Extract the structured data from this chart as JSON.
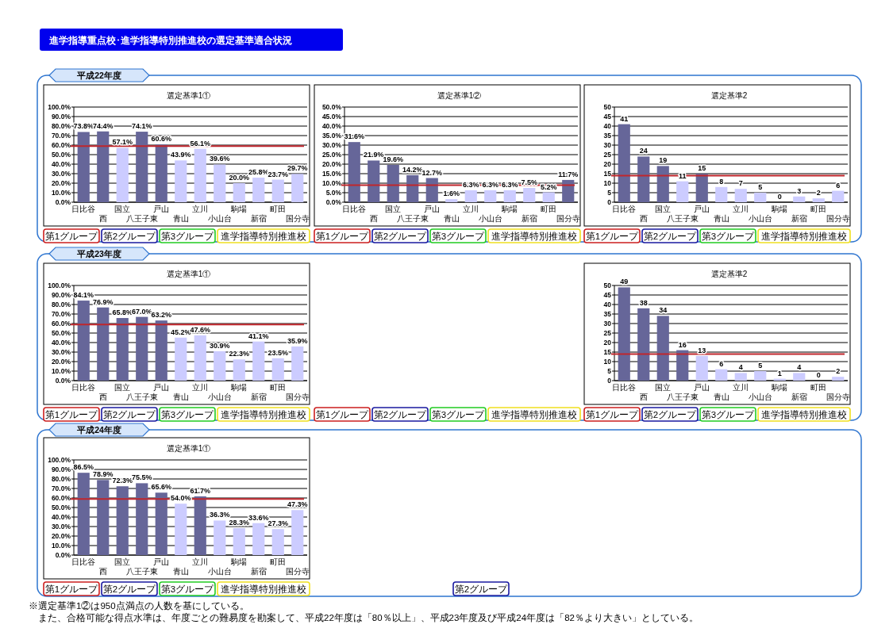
{
  "chart_data": [
    {
      "type": "other",
      "title": "進学指導重点校･進学指導特別推進校の選定基準適合状況",
      "annotations": [
        "※選定基準1②は950点満点の人数を基にしている。",
        "　また、合格可能な得点水準は、年度ごとの難易度を勘案して、平成22年度は「80％以上」、平成23年度及び平成24年度は「82％より大きい」としている。"
      ]
    },
    {
      "type": "bar",
      "subtitle": "平成22年度",
      "title": "選定基準1①",
      "categories": [
        "日比谷",
        "西",
        "国立",
        "八王子東",
        "戸山",
        "青山",
        "立川",
        "小山台",
        "駒場",
        "新宿",
        "町田",
        "国分寺"
      ],
      "values": [
        73.8,
        74.4,
        57.1,
        74.1,
        60.6,
        43.9,
        56.1,
        39.6,
        20.0,
        25.8,
        23.7,
        29.7
      ],
      "value_labels": [
        "73.8%",
        "74.4%",
        "57.1%",
        "74.1%",
        "60.6%",
        "43.9%",
        "56.1%",
        "39.6%",
        "20.0%",
        "25.8%",
        "23.7%",
        "29.7%"
      ],
      "colors": [
        "#666699",
        "#666699",
        "#ccccff",
        "#666699",
        "#666699",
        "#ccccff",
        "#ccccff",
        "#ccccff",
        "#ccccff",
        "#ccccff",
        "#ccccff",
        "#ccccff"
      ],
      "ylim": [
        0,
        100
      ],
      "yticks": [
        {
          "value": 0,
          "label": "0.0%"
        },
        {
          "value": 10,
          "label": "10.0%"
        },
        {
          "value": 20,
          "label": "20.0%"
        },
        {
          "value": 30,
          "label": "30.0%"
        },
        {
          "value": 40,
          "label": "40.0%"
        },
        {
          "value": 50,
          "label": "50.0%"
        },
        {
          "value": 60,
          "label": "60.0%"
        },
        {
          "value": 70,
          "label": "70.0%"
        },
        {
          "value": 80,
          "label": "80.0%"
        },
        {
          "value": 90,
          "label": "90.0%"
        },
        {
          "value": 100,
          "label": "100.0%"
        }
      ],
      "ref_lines": [
        {
          "axis": "y",
          "value": 59,
          "color": "#c0262c"
        }
      ],
      "grid": "y",
      "annotations": [
        "第1グループ",
        "第2グループ",
        "第3グループ",
        "進学指導特別推進校"
      ]
    },
    {
      "type": "bar",
      "title": "選定基準1②",
      "categories": [
        "日比谷",
        "西",
        "国立",
        "八王子東",
        "戸山",
        "青山",
        "立川",
        "小山台",
        "駒場",
        "新宿",
        "町田",
        "国分寺"
      ],
      "values": [
        31.6,
        21.9,
        19.6,
        14.2,
        12.7,
        1.6,
        6.3,
        6.3,
        6.3,
        7.5,
        5.2,
        11.7
      ],
      "value_labels": [
        "31.6%",
        "21.9%",
        "19.6%",
        "14.2%",
        "12.7%",
        "1.6%",
        "6.3%",
        "6.3%",
        "6.3%",
        "7.5%",
        "5.2%",
        "11.7%"
      ],
      "colors": [
        "#666699",
        "#666699",
        "#666699",
        "#666699",
        "#666699",
        "#ccccff",
        "#ccccff",
        "#ccccff",
        "#ccccff",
        "#ccccff",
        "#ccccff",
        "#666699"
      ],
      "ylim": [
        0,
        50
      ],
      "yticks": [
        {
          "value": 0,
          "label": "0.0%"
        },
        {
          "value": 5,
          "label": "5.0%"
        },
        {
          "value": 10,
          "label": "10.0%"
        },
        {
          "value": 15,
          "label": "15.0%"
        },
        {
          "value": 20,
          "label": "20.0%"
        },
        {
          "value": 25,
          "label": "25.0%"
        },
        {
          "value": 30,
          "label": "30.0%"
        },
        {
          "value": 35,
          "label": "35.0%"
        },
        {
          "value": 40,
          "label": "40.0%"
        },
        {
          "value": 45,
          "label": "45.0%"
        },
        {
          "value": 50,
          "label": "50.0%"
        }
      ],
      "ref_lines": [
        {
          "axis": "y",
          "value": 9,
          "color": "#c0262c"
        }
      ],
      "grid": "y",
      "annotations": [
        "第1グループ",
        "第2グループ",
        "第3グループ",
        "進学指導特別推進校"
      ]
    },
    {
      "type": "bar",
      "title": "選定基準2",
      "categories": [
        "日比谷",
        "西",
        "国立",
        "八王子東",
        "戸山",
        "青山",
        "立川",
        "小山台",
        "駒場",
        "新宿",
        "町田",
        "国分寺"
      ],
      "values": [
        41,
        24,
        19,
        11,
        15,
        8,
        7,
        5,
        0,
        3,
        2,
        6
      ],
      "data_labels": true,
      "colors": [
        "#666699",
        "#666699",
        "#666699",
        "#ccccff",
        "#666699",
        "#ccccff",
        "#ccccff",
        "#ccccff",
        "#ccccff",
        "#ccccff",
        "#ccccff",
        "#ccccff"
      ],
      "ylim": [
        0,
        50
      ],
      "yticks": [
        0,
        5,
        10,
        15,
        20,
        25,
        30,
        35,
        40,
        45,
        50
      ],
      "ref_lines": [
        {
          "axis": "y",
          "value": 14,
          "color": "#c0262c"
        }
      ],
      "grid": "y",
      "annotations": [
        "第1グループ",
        "第2グループ",
        "第3グループ",
        "進学指導特別推進校"
      ]
    },
    {
      "type": "bar",
      "subtitle": "平成23年度",
      "title": "選定基準1①",
      "categories": [
        "日比谷",
        "西",
        "国立",
        "八王子東",
        "戸山",
        "青山",
        "立川",
        "小山台",
        "駒場",
        "新宿",
        "町田",
        "国分寺"
      ],
      "values": [
        84.1,
        76.9,
        65.8,
        67.0,
        63.2,
        45.2,
        47.6,
        30.9,
        22.3,
        41.1,
        23.5,
        35.9
      ],
      "value_labels": [
        "84.1%",
        "76.9%",
        "65.8%",
        "67.0%",
        "63.2%",
        "45.2%",
        "47.6%",
        "30.9%",
        "22.3%",
        "41.1%",
        "23.5%",
        "35.9%"
      ],
      "colors": [
        "#666699",
        "#666699",
        "#666699",
        "#666699",
        "#666699",
        "#ccccff",
        "#ccccff",
        "#ccccff",
        "#ccccff",
        "#ccccff",
        "#ccccff",
        "#ccccff"
      ],
      "ylim": [
        0,
        100
      ],
      "yticks": [
        {
          "value": 0,
          "label": "0.0%"
        },
        {
          "value": 10,
          "label": "10.0%"
        },
        {
          "value": 20,
          "label": "20.0%"
        },
        {
          "value": 30,
          "label": "30.0%"
        },
        {
          "value": 40,
          "label": "40.0%"
        },
        {
          "value": 50,
          "label": "50.0%"
        },
        {
          "value": 60,
          "label": "60.0%"
        },
        {
          "value": 70,
          "label": "70.0%"
        },
        {
          "value": 80,
          "label": "80.0%"
        },
        {
          "value": 90,
          "label": "90.0%"
        },
        {
          "value": 100,
          "label": "100.0%"
        }
      ],
      "ref_lines": [
        {
          "axis": "y",
          "value": 59,
          "color": "#c0262c"
        }
      ],
      "grid": "y",
      "annotations": [
        "第1グループ",
        "第2グループ",
        "第3グループ",
        "進学指導特別推進校",
        "第1グループ",
        "第2グループ",
        "第3グループ",
        "進学指導特別推進校"
      ]
    },
    {
      "type": "bar",
      "title": "選定基準2",
      "categories": [
        "日比谷",
        "西",
        "国立",
        "八王子東",
        "戸山",
        "青山",
        "立川",
        "小山台",
        "駒場",
        "新宿",
        "町田",
        "国分寺"
      ],
      "values": [
        49,
        38,
        34,
        16,
        13,
        6,
        4,
        5,
        1,
        4,
        0,
        2
      ],
      "data_labels": true,
      "colors": [
        "#666699",
        "#666699",
        "#666699",
        "#666699",
        "#ccccff",
        "#ccccff",
        "#ccccff",
        "#ccccff",
        "#ccccff",
        "#ccccff",
        "#ccccff",
        "#ccccff"
      ],
      "ylim": [
        0,
        50
      ],
      "yticks": [
        0,
        5,
        10,
        15,
        20,
        25,
        30,
        35,
        40,
        45,
        50
      ],
      "ref_lines": [
        {
          "axis": "y",
          "value": 14,
          "color": "#c0262c"
        }
      ],
      "grid": "y",
      "annotations": [
        "第1グループ",
        "第2グループ",
        "第3グループ",
        "進学指導特別推進校"
      ]
    },
    {
      "type": "bar",
      "subtitle": "平成24年度",
      "title": "選定基準1①",
      "categories": [
        "日比谷",
        "西",
        "国立",
        "八王子東",
        "戸山",
        "青山",
        "立川",
        "小山台",
        "駒場",
        "新宿",
        "町田",
        "国分寺"
      ],
      "values": [
        86.5,
        78.9,
        72.3,
        75.5,
        65.6,
        54.0,
        61.7,
        36.3,
        28.3,
        33.6,
        27.3,
        47.3
      ],
      "value_labels": [
        "86.5%",
        "78.9%",
        "72.3%",
        "75.5%",
        "65.6%",
        "54.0%",
        "61.7%",
        "36.3%",
        "28.3%",
        "33.6%",
        "27.3%",
        "47.3%"
      ],
      "colors": [
        "#666699",
        "#666699",
        "#666699",
        "#666699",
        "#666699",
        "#ccccff",
        "#666699",
        "#ccccff",
        "#ccccff",
        "#ccccff",
        "#ccccff",
        "#ccccff"
      ],
      "ylim": [
        0,
        100
      ],
      "yticks": [
        {
          "value": 0,
          "label": "0.0%"
        },
        {
          "value": 10,
          "label": "10.0%"
        },
        {
          "value": 20,
          "label": "20.0%"
        },
        {
          "value": 30,
          "label": "30.0%"
        },
        {
          "value": 40,
          "label": "40.0%"
        },
        {
          "value": 50,
          "label": "50.0%"
        },
        {
          "value": 60,
          "label": "60.0%"
        },
        {
          "value": 70,
          "label": "70.0%"
        },
        {
          "value": 80,
          "label": "80.0%"
        },
        {
          "value": 90,
          "label": "90.0%"
        },
        {
          "value": 100,
          "label": "100.0%"
        }
      ],
      "ref_lines": [
        {
          "axis": "y",
          "value": 59,
          "color": "#c0262c"
        }
      ],
      "grid": "y",
      "annotations": [
        "第1グループ",
        "第2グループ",
        "第3グループ",
        "進学指導特別推進校",
        "第2グループ"
      ]
    }
  ]
}
